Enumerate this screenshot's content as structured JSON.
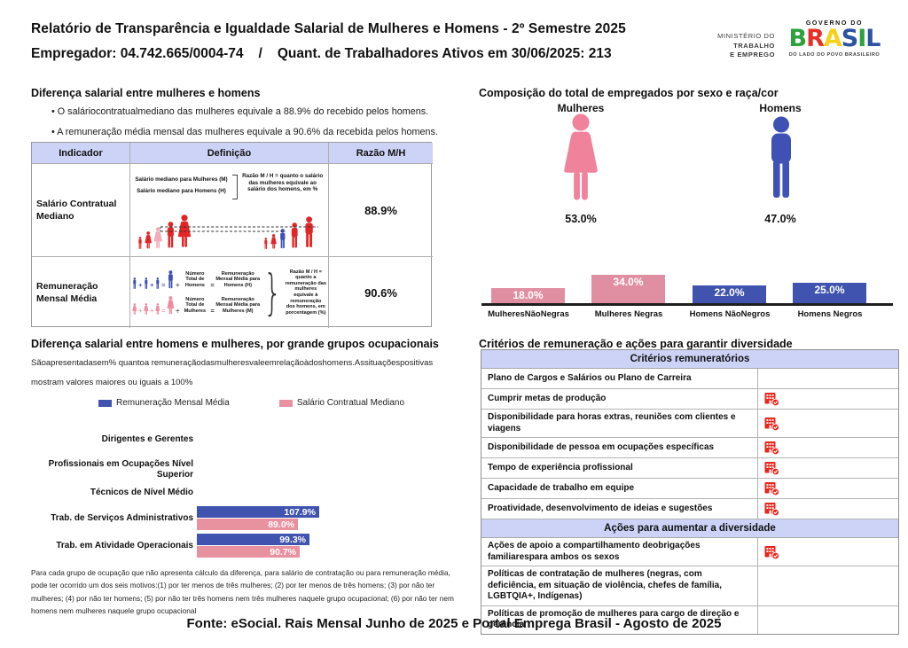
{
  "header": {
    "title": "Relatório de Transparência e Igualdade Salarial de Mulheres e Homens - 2º Semestre 2025",
    "employer": "Empregador: 04.742.665/0004-74",
    "slash": "/",
    "workers": "Quant. de Trabalhadores Ativos em 30/06/2025: 213",
    "ministry_lines": [
      "MINISTÉRIO DO",
      "TRABALHO",
      "E EMPREGO"
    ],
    "gov_top": "GOVERNO DO",
    "gov_name": "BRASIL",
    "gov_tagline": "DO LADO DO POVO BRASILEIRO"
  },
  "pay_gap": {
    "title": "Diferença salarial entre mulheres e homens",
    "bullets": [
      "O saláriocontratualmediano das mulheres equivale a 88.9% do recebido pelos homens.",
      "A remuneração média mensal das mulheres equivale a 90.6% da recebida pelos homens."
    ],
    "table": {
      "headers": [
        "Indicador",
        "Definição",
        "Razão M/H"
      ],
      "row1": {
        "indicator": "Salário Contratual Mediano",
        "def_line1": "Salário mediano para Mulheres (M)",
        "def_line2": "Salário mediano para Homens (H)",
        "def_note": "Razão M / H = quanto o salário das mulheres equivale ao salário dos homens, em %",
        "ratio": "88.9%"
      },
      "row2": {
        "indicator": "Remuneração Mensal Média",
        "plus": "+",
        "equals": "=",
        "divide": "÷",
        "men_divisor": "Número Total de Homens",
        "men_result": "Remuneração Mensal Média para Homens (H)",
        "women_divisor": "Número Total de Mulheres",
        "women_result": "Remuneração Mensal Média para Mulheres (M)",
        "def_note": "Razão M / H = quanto a remuneração das mulheres equivale à remuneração dos homens, em porcentagem (%)",
        "ratio": "90.6%"
      }
    }
  },
  "composition": {
    "title": "Composição do total de empregados por sexo e raça/cor",
    "groups": [
      {
        "label": "Mulheres",
        "pct": "53.0%"
      },
      {
        "label": "Homens",
        "pct": "47.0%"
      }
    ],
    "race_chart": {
      "categories": [
        "MulheresNãoNegras",
        "Mulheres Negras",
        "Homens NãoNegros",
        "Homens Negros"
      ],
      "values": [
        18.0,
        34.0,
        22.0,
        25.0
      ],
      "labels": [
        "18.0%",
        "34.0%",
        "22.0%",
        "25.0%"
      ],
      "colors": [
        "#E08FA2",
        "#E08FA2",
        "#4053AE",
        "#4053AE"
      ]
    }
  },
  "occupational": {
    "title": "Diferença salarial entre homens e mulheres, por grande grupos ocupacionais",
    "subtitle_line1": "Sãoapresentadasem% quantoa remuneraçãodasmulheresvaleemrelaçãoàdoshomens.Assituaçõespositivas",
    "subtitle_line2": "mostram valores maiores ou iguais a 100%",
    "legend": [
      {
        "label": "Remuneração Mensal Média",
        "color": "#4053AE"
      },
      {
        "label": "Salário Contratual Mediano",
        "color": "#E8919F"
      }
    ],
    "categories": [
      {
        "label": "Dirigentes e Gerentes",
        "mensal": null,
        "mensal_label": "",
        "contratual": null,
        "contratual_label": ""
      },
      {
        "label": "Profissionais em Ocupações Nível Superior",
        "mensal": null,
        "mensal_label": "",
        "contratual": null,
        "contratual_label": ""
      },
      {
        "label": "Técnicos de Nível Médio",
        "mensal": null,
        "mensal_label": "",
        "contratual": null,
        "contratual_label": ""
      },
      {
        "label": "Trab. de Serviços Administrativos",
        "mensal": 107.9,
        "mensal_label": "107.9%",
        "contratual": 89.0,
        "contratual_label": "89.0%"
      },
      {
        "label": "Trab. em Atividade Operacionais",
        "mensal": 99.3,
        "mensal_label": "99.3%",
        "contratual": 90.7,
        "contratual_label": "90.7%"
      }
    ],
    "footnote": "Para cada grupo de ocupação que não apresenta cálculo da diferença, para salário de contratação ou para remuneração média, pode ter ocorrido um dos seis motivos:(1) por ter menos de três mulheres; (2) por ter menos de três homens; (3) por não ter mulheres; (4) por não ter homens; (5) por não ter três homens nem três mulheres naquele grupo ocupacional; (6) por não ter nem homens nem mulheres naquele grupo ocupacional"
  },
  "criteria": {
    "title": "Critérios de remuneração e ações para garantir diversidade",
    "sections": [
      {
        "header": "Critérios remuneratórios",
        "rows": [
          {
            "label": "Plano de Cargos e Salários ou Plano de Carreira",
            "checked": false
          },
          {
            "label": "Cumprir metas de produção",
            "checked": true
          },
          {
            "label": "Disponibilidade para horas extras, reuniões com clientes e viagens",
            "checked": true
          },
          {
            "label": "Disponibilidade de pessoa em ocupações específicas",
            "checked": true
          },
          {
            "label": "Tempo de experiência profissional",
            "checked": true
          },
          {
            "label": "Capacidade de trabalho em equipe",
            "checked": true
          },
          {
            "label": "Proatividade, desenvolvimento de ideias e sugestões",
            "checked": true
          }
        ]
      },
      {
        "header": "Ações para aumentar a diversidade",
        "rows": [
          {
            "label": "Ações de apoio a compartilhamento deobrigações familiarespara ambos os sexos",
            "checked": true
          },
          {
            "label": "Políticas de contratação de mulheres (negras, com deficiência, em situação de violência, chefes de família, LGBTQIA+, Indígenas)",
            "checked": false
          },
          {
            "label": "Políticas de promoção de mulheres para cargo de direção e gerência",
            "checked": false
          }
        ]
      }
    ]
  },
  "footer": {
    "source": "Fonte: eSocial. Rais Mensal Junho de 2025 e Portal Emprega Brasil - Agosto de 2025"
  },
  "colors": {
    "pink_bar": "#E08FA2",
    "pink_figure": "#F0829B",
    "pink_light": "#F2ABB9",
    "blue_bar": "#4053AE",
    "blue_figure": "#3F51B5",
    "red_figure": "#E32526",
    "red_icon": "#E8261D",
    "lavender": "#CDD3F6",
    "brasil_letters": [
      "#2BA23C",
      "#E62F26",
      "#F6D21C",
      "#2C52A0",
      "#2BA23C",
      "#2C52A0"
    ]
  },
  "chart_data": [
    {
      "type": "bar",
      "title": "Composição do total de empregados por sexo e raça/cor",
      "categories": [
        "MulheresNãoNegras",
        "Mulheres Negras",
        "Homens NãoNegros",
        "Homens Negros"
      ],
      "values": [
        18.0,
        34.0,
        22.0,
        25.0
      ],
      "unit": "%",
      "annotations": {
        "Mulheres": 53.0,
        "Homens": 47.0
      },
      "xlabel": "",
      "ylabel": "",
      "grid": false,
      "legend_position": "none"
    },
    {
      "type": "bar",
      "orientation": "horizontal",
      "title": "Diferença salarial entre homens e mulheres, por grande grupos ocupacionais",
      "categories": [
        "Dirigentes e Gerentes",
        "Profissionais em Ocupações Nível Superior",
        "Técnicos de Nível Médio",
        "Trab. de Serviços Administrativos",
        "Trab. em Atividade Operacionais"
      ],
      "series": [
        {
          "name": "Remuneração Mensal Média",
          "values": [
            null,
            null,
            null,
            107.9,
            99.3
          ]
        },
        {
          "name": "Salário Contratual Mediano",
          "values": [
            null,
            null,
            null,
            89.0,
            90.7
          ]
        }
      ],
      "unit": "%",
      "grid": false,
      "legend_position": "top"
    }
  ]
}
